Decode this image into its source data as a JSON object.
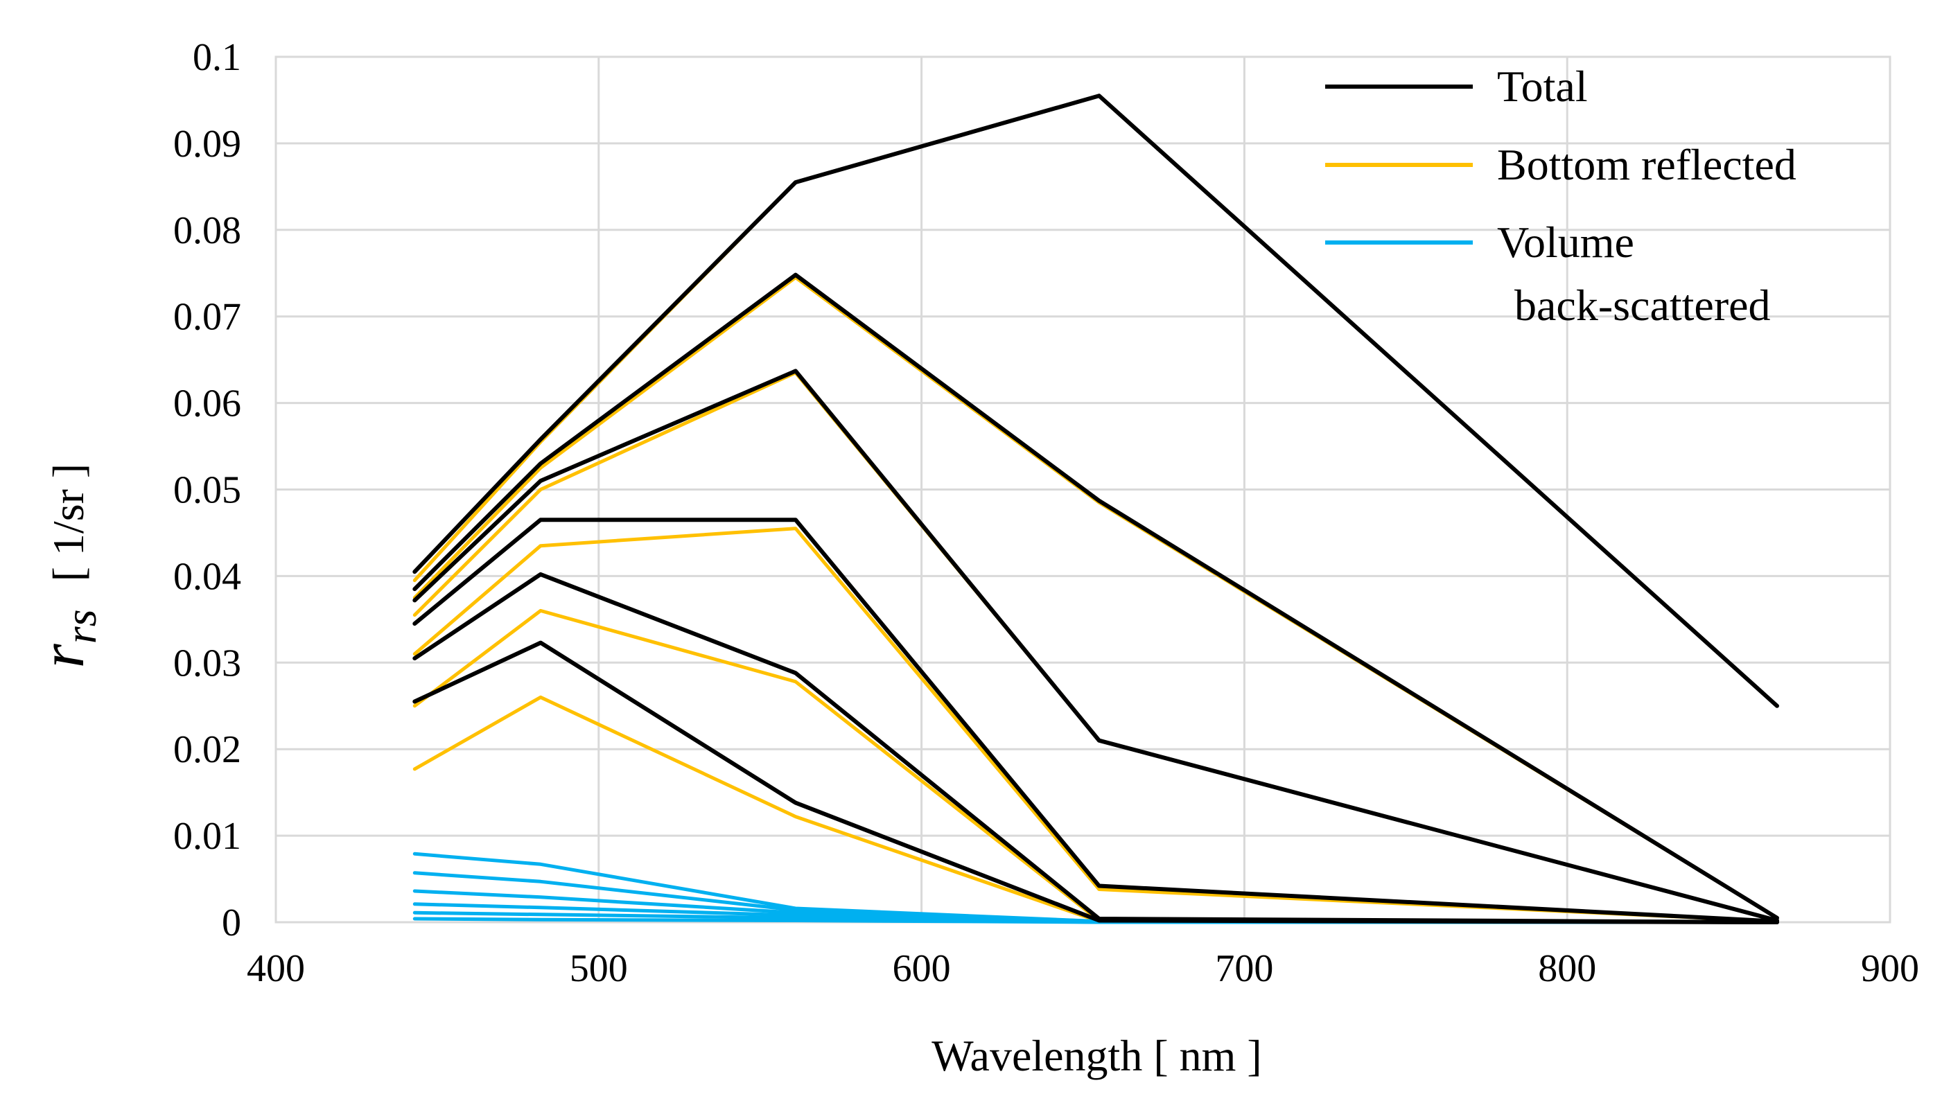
{
  "chart_data": {
    "type": "line",
    "title": "",
    "xlabel": "Wavelength [ nm ]",
    "ylabel": {
      "symbol": "r",
      "subscript": "rs",
      "unit": "[ 1/sr ]"
    },
    "xlim": [
      400,
      900
    ],
    "ylim": [
      0,
      0.1
    ],
    "xticks": [
      "400",
      "500",
      "600",
      "700",
      "800",
      "900"
    ],
    "yticks": [
      "0",
      "0.01",
      "0.02",
      "0.03",
      "0.04",
      "0.05",
      "0.06",
      "0.07",
      "0.08",
      "0.09",
      "0.1"
    ],
    "grid": true,
    "legend": {
      "placement": "top-right",
      "entries": [
        {
          "label": "Total",
          "color": "#000000"
        },
        {
          "label": "Bottom reflected",
          "color": "#FFC000"
        },
        {
          "label": "Volume",
          "label_line2": "back-scattered",
          "color": "#00B0F0"
        }
      ]
    },
    "x": [
      443,
      482,
      561,
      655,
      865
    ],
    "series": [
      {
        "name": "Bottom reflected",
        "group": "bottom",
        "color": "#FFC000",
        "values": [
          0.0395,
          0.0555,
          0.0855,
          0.0955,
          0.025
        ]
      },
      {
        "name": "Bottom reflected",
        "group": "bottom",
        "color": "#FFC000",
        "values": [
          0.0375,
          0.0525,
          0.0745,
          0.0485,
          0.0005
        ]
      },
      {
        "name": "Bottom reflected",
        "group": "bottom",
        "color": "#FFC000",
        "values": [
          0.0355,
          0.05,
          0.0635,
          0.021,
          0.0002
        ]
      },
      {
        "name": "Bottom reflected",
        "group": "bottom",
        "color": "#FFC000",
        "values": [
          0.031,
          0.0435,
          0.0455,
          0.0038,
          0.0001
        ]
      },
      {
        "name": "Bottom reflected",
        "group": "bottom",
        "color": "#FFC000",
        "values": [
          0.025,
          0.036,
          0.0278,
          0.0002,
          0.0
        ]
      },
      {
        "name": "Bottom reflected",
        "group": "bottom",
        "color": "#FFC000",
        "values": [
          0.0177,
          0.026,
          0.0122,
          0.0001,
          0.0
        ]
      },
      {
        "name": "Volume back-scattered",
        "group": "volume",
        "color": "#00B0F0",
        "values": [
          0.0079,
          0.0067,
          0.0016,
          0.0001,
          0.0
        ]
      },
      {
        "name": "Volume back-scattered",
        "group": "volume",
        "color": "#00B0F0",
        "values": [
          0.0057,
          0.0047,
          0.0014,
          0.0001,
          0.0
        ]
      },
      {
        "name": "Volume back-scattered",
        "group": "volume",
        "color": "#00B0F0",
        "values": [
          0.0036,
          0.0029,
          0.0011,
          0.0001,
          0.0
        ]
      },
      {
        "name": "Volume back-scattered",
        "group": "volume",
        "color": "#00B0F0",
        "values": [
          0.0021,
          0.0017,
          0.0008,
          0.0001,
          0.0
        ]
      },
      {
        "name": "Volume back-scattered",
        "group": "volume",
        "color": "#00B0F0",
        "values": [
          0.0011,
          0.0009,
          0.0005,
          0.0,
          0.0
        ]
      },
      {
        "name": "Volume back-scattered",
        "group": "volume",
        "color": "#00B0F0",
        "values": [
          0.0004,
          0.0003,
          0.0002,
          0.0,
          0.0
        ]
      },
      {
        "name": "Total",
        "group": "total",
        "color": "#000000",
        "values": [
          0.0405,
          0.0558,
          0.0855,
          0.0955,
          0.025
        ]
      },
      {
        "name": "Total",
        "group": "total",
        "color": "#000000",
        "values": [
          0.0385,
          0.053,
          0.0748,
          0.0487,
          0.0005
        ]
      },
      {
        "name": "Total",
        "group": "total",
        "color": "#000000",
        "values": [
          0.0372,
          0.051,
          0.0637,
          0.021,
          0.0002
        ]
      },
      {
        "name": "Total",
        "group": "total",
        "color": "#000000",
        "values": [
          0.0345,
          0.0465,
          0.0465,
          0.0042,
          0.0001
        ]
      },
      {
        "name": "Total",
        "group": "total",
        "color": "#000000",
        "values": [
          0.0305,
          0.0402,
          0.0288,
          0.0004,
          0.0
        ]
      },
      {
        "name": "Total",
        "group": "total",
        "color": "#000000",
        "values": [
          0.0255,
          0.0323,
          0.0138,
          0.0002,
          0.0
        ]
      }
    ]
  }
}
